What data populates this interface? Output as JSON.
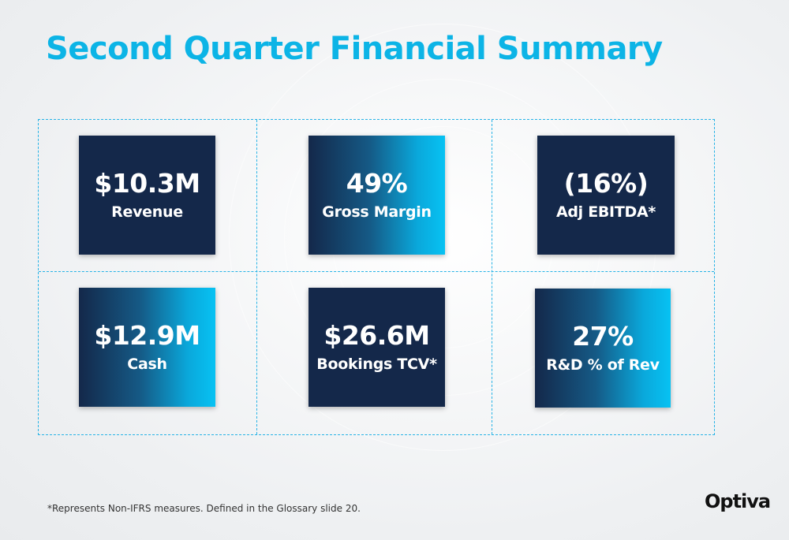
{
  "slide": {
    "title": "Second Quarter Financial Summary",
    "footnote": "*Represents Non-IFRS measures. Defined in the Glossary slide 20.",
    "logo": "Optiva"
  },
  "colors": {
    "title": "#0cb4e6",
    "tile_dark": "#14284a",
    "tile_gradient_end": "#07c2f3",
    "grid_border": "#27b3e6"
  },
  "metrics": [
    {
      "value": "$10.3M",
      "label": "Revenue",
      "style": "dark"
    },
    {
      "value": "49%",
      "label": "Gross Margin",
      "style": "gradient"
    },
    {
      "value": "(16%)",
      "label": "Adj EBITDA*",
      "style": "dark"
    },
    {
      "value": "$12.9M",
      "label": "Cash",
      "style": "gradient"
    },
    {
      "value": "$26.6M",
      "label": "Bookings TCV*",
      "style": "dark"
    },
    {
      "value": "27%",
      "label": "R&D % of Rev",
      "style": "gradient"
    }
  ]
}
